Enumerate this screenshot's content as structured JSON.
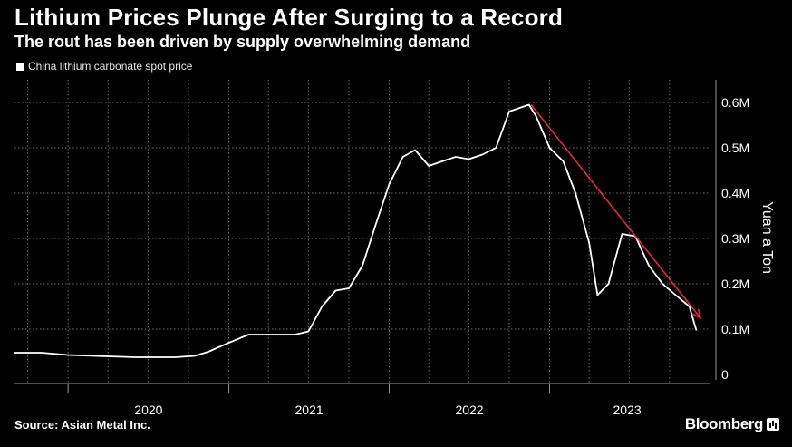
{
  "header": {
    "title": "Lithium Prices Plunge After Surging to a Record",
    "subtitle": "The rout has been driven by supply overwhelming demand"
  },
  "legend": {
    "label": "China lithium carbonate spot price"
  },
  "footer": {
    "source": "Source: Asian Metal Inc.",
    "brand": "Bloomberg"
  },
  "colors": {
    "background": "#000000",
    "line": "#ffffff",
    "trend_arrow": "#e8283c",
    "grid": "#6e6e6e"
  },
  "chart_data": {
    "type": "line",
    "title": "Lithium Prices Plunge After Surging to a Record",
    "subtitle": "The rout has been driven by supply overwhelming demand",
    "ylabel": "Yuan a Ton",
    "ylim": [
      0,
      650000
    ],
    "y_ticks": [
      0,
      100000,
      200000,
      300000,
      400000,
      500000,
      600000
    ],
    "y_tick_labels": [
      "0",
      "0.1M",
      "0.2M",
      "0.3M",
      "0.4M",
      "0.5M",
      "0.6M"
    ],
    "x_range": [
      "2019-09-01",
      "2023-12-31"
    ],
    "x_ticks": [
      "2020-01-01",
      "2021-01-01",
      "2022-01-01",
      "2023-01-01"
    ],
    "x_tick_labels": [
      "2020",
      "2021",
      "2022",
      "2023"
    ],
    "grid": true,
    "legend_position": "top-left",
    "series": [
      {
        "name": "China lithium carbonate spot price",
        "x": [
          "2019-09-01",
          "2019-11-01",
          "2020-01-01",
          "2020-03-01",
          "2020-06-01",
          "2020-09-01",
          "2020-10-15",
          "2020-11-15",
          "2021-01-01",
          "2021-02-15",
          "2021-03-15",
          "2021-04-15",
          "2021-06-01",
          "2021-07-01",
          "2021-08-01",
          "2021-09-01",
          "2021-10-01",
          "2021-11-01",
          "2021-12-01",
          "2022-01-01",
          "2022-02-01",
          "2022-03-01",
          "2022-04-01",
          "2022-05-01",
          "2022-06-01",
          "2022-07-01",
          "2022-08-01",
          "2022-09-01",
          "2022-10-01",
          "2022-11-15",
          "2022-12-01",
          "2023-01-01",
          "2023-02-01",
          "2023-03-01",
          "2023-04-01",
          "2023-04-20",
          "2023-05-15",
          "2023-06-15",
          "2023-07-15",
          "2023-08-15",
          "2023-09-15",
          "2023-10-15",
          "2023-11-15",
          "2023-12-01"
        ],
        "values": [
          48000,
          48000,
          43000,
          41000,
          38000,
          38000,
          41000,
          50000,
          70000,
          88000,
          88000,
          88000,
          88000,
          95000,
          150000,
          185000,
          190000,
          240000,
          330000,
          420000,
          480000,
          495000,
          460000,
          470000,
          480000,
          475000,
          485000,
          500000,
          580000,
          595000,
          570000,
          500000,
          470000,
          400000,
          290000,
          175000,
          200000,
          310000,
          305000,
          240000,
          200000,
          175000,
          150000,
          97000
        ]
      }
    ]
  }
}
